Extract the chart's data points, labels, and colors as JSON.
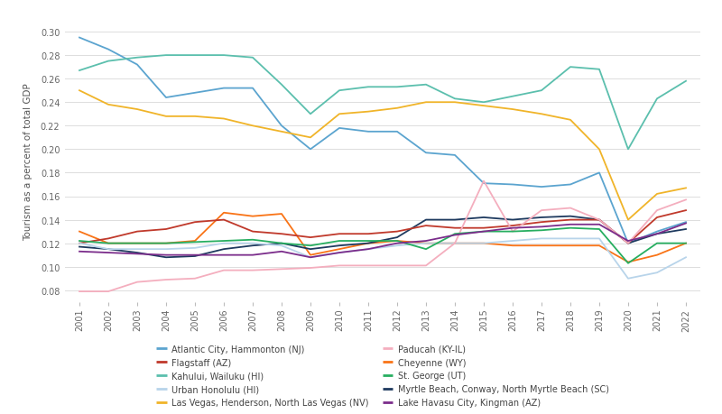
{
  "years": [
    2001,
    2002,
    2003,
    2004,
    2005,
    2006,
    2007,
    2008,
    2009,
    2010,
    2011,
    2012,
    2013,
    2014,
    2015,
    2016,
    2017,
    2018,
    2019,
    2020,
    2021,
    2022
  ],
  "series": {
    "Atlantic City, Hammonton (NJ)": {
      "color": "#5BA4CF",
      "data": [
        0.295,
        0.285,
        0.272,
        0.244,
        0.248,
        0.252,
        0.252,
        0.22,
        0.2,
        0.218,
        0.215,
        0.215,
        0.197,
        0.195,
        0.171,
        0.17,
        0.168,
        0.17,
        0.18,
        0.12,
        0.13,
        0.138
      ]
    },
    "Kahului, Wailuku (HI)": {
      "color": "#5BBFAD",
      "data": [
        0.267,
        0.275,
        0.278,
        0.28,
        0.28,
        0.28,
        0.278,
        0.255,
        0.23,
        0.25,
        0.253,
        0.253,
        0.255,
        0.243,
        0.24,
        0.245,
        0.25,
        0.27,
        0.268,
        0.2,
        0.243,
        0.258
      ]
    },
    "Las Vegas, Henderson, North Las Vegas (NV)": {
      "color": "#F0B429",
      "data": [
        0.25,
        0.238,
        0.234,
        0.228,
        0.228,
        0.226,
        0.22,
        0.215,
        0.21,
        0.23,
        0.232,
        0.235,
        0.24,
        0.24,
        0.237,
        0.234,
        0.23,
        0.225,
        0.2,
        0.14,
        0.162,
        0.167
      ]
    },
    "Cheyenne (WY)": {
      "color": "#F97316",
      "data": [
        0.13,
        0.12,
        0.12,
        0.12,
        0.122,
        0.146,
        0.143,
        0.145,
        0.11,
        0.115,
        0.12,
        0.122,
        0.12,
        0.12,
        0.12,
        0.118,
        0.118,
        0.118,
        0.118,
        0.104,
        0.11,
        0.12
      ]
    },
    "Myrtle Beach, Conway, North Myrtle Beach (SC)": {
      "color": "#1E3A5F",
      "data": [
        0.117,
        0.115,
        0.112,
        0.108,
        0.109,
        0.115,
        0.118,
        0.12,
        0.115,
        0.118,
        0.12,
        0.125,
        0.14,
        0.14,
        0.142,
        0.14,
        0.142,
        0.143,
        0.14,
        0.12,
        0.128,
        0.132
      ]
    },
    "Flagstaff (AZ)": {
      "color": "#C0392B",
      "data": [
        0.12,
        0.124,
        0.13,
        0.132,
        0.138,
        0.14,
        0.13,
        0.128,
        0.125,
        0.128,
        0.128,
        0.13,
        0.135,
        0.133,
        0.133,
        0.135,
        0.138,
        0.14,
        0.14,
        0.12,
        0.142,
        0.148
      ]
    },
    "Urban Honolulu (HI)": {
      "color": "#B8D4EA",
      "data": [
        0.12,
        0.115,
        0.115,
        0.115,
        0.116,
        0.12,
        0.12,
        0.118,
        0.108,
        0.112,
        0.115,
        0.118,
        0.12,
        0.12,
        0.12,
        0.122,
        0.124,
        0.124,
        0.124,
        0.09,
        0.095,
        0.108
      ]
    },
    "Paducah (KY-IL)": {
      "color": "#F4AEBE",
      "data": [
        0.079,
        0.079,
        0.087,
        0.089,
        0.09,
        0.097,
        0.097,
        0.098,
        0.099,
        0.101,
        0.101,
        0.101,
        0.101,
        0.12,
        0.173,
        0.13,
        0.148,
        0.15,
        0.14,
        0.12,
        0.148,
        0.157
      ]
    },
    "St. George (UT)": {
      "color": "#27AE60",
      "data": [
        0.122,
        0.12,
        0.12,
        0.12,
        0.121,
        0.122,
        0.123,
        0.12,
        0.118,
        0.122,
        0.122,
        0.122,
        0.115,
        0.128,
        0.13,
        0.13,
        0.131,
        0.133,
        0.132,
        0.103,
        0.12,
        0.12
      ]
    },
    "Lake Havasu City, Kingman (AZ)": {
      "color": "#7B2D8B",
      "data": [
        0.113,
        0.112,
        0.111,
        0.11,
        0.11,
        0.11,
        0.11,
        0.113,
        0.108,
        0.112,
        0.115,
        0.12,
        0.122,
        0.127,
        0.13,
        0.133,
        0.134,
        0.136,
        0.136,
        0.122,
        0.128,
        0.137
      ]
    }
  },
  "ylabel": "Tourism as a percent of total GDP",
  "ylim": [
    0.07,
    0.31
  ],
  "yticks": [
    0.08,
    0.1,
    0.12,
    0.14,
    0.16,
    0.18,
    0.2,
    0.22,
    0.24,
    0.26,
    0.28,
    0.3
  ],
  "background_color": "#FFFFFF",
  "grid_color": "#DDDDDD",
  "legend_order": [
    "Atlantic City, Hammonton (NJ)",
    "Flagstaff (AZ)",
    "Kahului, Wailuku (HI)",
    "Urban Honolulu (HI)",
    "Las Vegas, Henderson, North Las Vegas (NV)",
    "Paducah (KY-IL)",
    "Cheyenne (WY)",
    "St. George (UT)",
    "Myrtle Beach, Conway, North Myrtle Beach (SC)",
    "Lake Havasu City, Kingman (AZ)"
  ]
}
